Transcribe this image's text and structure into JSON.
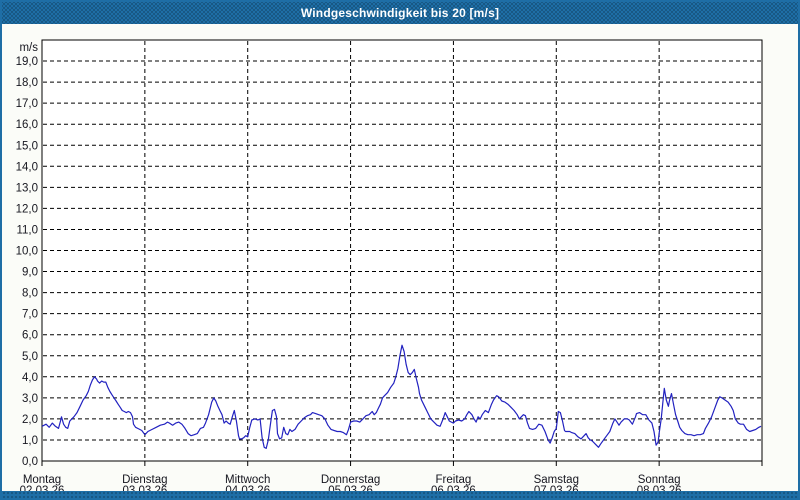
{
  "window": {
    "title": "Windgeschwindigkeit bis 20 [m/s]"
  },
  "colors": {
    "chrome_blue": "#1e6ea6",
    "line": "#2222c0",
    "grid": "#000000",
    "title_text": "#ffffff",
    "label_text": "#16161f",
    "plot_bg": "#ffffff",
    "page_bg": "#fbfcf8"
  },
  "chart_data": {
    "type": "line",
    "title": "Windgeschwindigkeit bis 20 [m/s]",
    "ylabel": "m/s",
    "xlabel": "",
    "legend": "none",
    "grid": "dashed",
    "y_axis": {
      "min": 0,
      "max": 20,
      "tick_step": 1,
      "unit_label": "m/s",
      "tick_decimal": "comma"
    },
    "x_axis": {
      "range_days": [
        0,
        7
      ],
      "ticks": [
        {
          "weekday": "Montag",
          "date": "02.03.26"
        },
        {
          "weekday": "Dienstag",
          "date": "03.03.26"
        },
        {
          "weekday": "Mittwoch",
          "date": "04.03.26"
        },
        {
          "weekday": "Donnerstag",
          "date": "05.03.26"
        },
        {
          "weekday": "Freitag",
          "date": "06.03.26"
        },
        {
          "weekday": "Samstag",
          "date": "07.03.26"
        },
        {
          "weekday": "Sonntag",
          "date": "08.03.26"
        }
      ]
    },
    "series": [
      {
        "name": "Windgeschwindigkeit",
        "color": "#2222c0",
        "points": [
          [
            0.0,
            1.65
          ],
          [
            0.04,
            1.75
          ],
          [
            0.07,
            1.6
          ],
          [
            0.1,
            1.8
          ],
          [
            0.13,
            1.65
          ],
          [
            0.16,
            1.55
          ],
          [
            0.18,
            1.9
          ],
          [
            0.19,
            2.1
          ],
          [
            0.21,
            1.75
          ],
          [
            0.23,
            1.6
          ],
          [
            0.25,
            1.55
          ],
          [
            0.27,
            1.9
          ],
          [
            0.29,
            2.0
          ],
          [
            0.31,
            2.1
          ],
          [
            0.34,
            2.3
          ],
          [
            0.37,
            2.6
          ],
          [
            0.4,
            2.9
          ],
          [
            0.43,
            3.1
          ],
          [
            0.45,
            3.3
          ],
          [
            0.47,
            3.6
          ],
          [
            0.49,
            3.85
          ],
          [
            0.51,
            4.0
          ],
          [
            0.53,
            3.9
          ],
          [
            0.54,
            3.8
          ],
          [
            0.56,
            3.7
          ],
          [
            0.58,
            3.8
          ],
          [
            0.6,
            3.75
          ],
          [
            0.62,
            3.75
          ],
          [
            0.64,
            3.5
          ],
          [
            0.66,
            3.3
          ],
          [
            0.68,
            3.15
          ],
          [
            0.7,
            3.0
          ],
          [
            0.72,
            2.85
          ],
          [
            0.74,
            2.7
          ],
          [
            0.76,
            2.55
          ],
          [
            0.78,
            2.4
          ],
          [
            0.8,
            2.35
          ],
          [
            0.82,
            2.3
          ],
          [
            0.84,
            2.35
          ],
          [
            0.86,
            2.3
          ],
          [
            0.88,
            2.1
          ],
          [
            0.89,
            1.75
          ],
          [
            0.91,
            1.6
          ],
          [
            0.93,
            1.55
          ],
          [
            0.95,
            1.5
          ],
          [
            0.97,
            1.45
          ],
          [
            1.0,
            1.25
          ],
          [
            1.03,
            1.4
          ],
          [
            1.07,
            1.5
          ],
          [
            1.11,
            1.6
          ],
          [
            1.15,
            1.7
          ],
          [
            1.19,
            1.75
          ],
          [
            1.22,
            1.85
          ],
          [
            1.24,
            1.8
          ],
          [
            1.27,
            1.7
          ],
          [
            1.3,
            1.8
          ],
          [
            1.33,
            1.85
          ],
          [
            1.36,
            1.75
          ],
          [
            1.39,
            1.55
          ],
          [
            1.42,
            1.3
          ],
          [
            1.45,
            1.2
          ],
          [
            1.48,
            1.25
          ],
          [
            1.51,
            1.3
          ],
          [
            1.54,
            1.55
          ],
          [
            1.57,
            1.6
          ],
          [
            1.59,
            1.8
          ],
          [
            1.62,
            2.2
          ],
          [
            1.65,
            2.8
          ],
          [
            1.67,
            3.0
          ],
          [
            1.69,
            2.85
          ],
          [
            1.71,
            2.6
          ],
          [
            1.73,
            2.4
          ],
          [
            1.75,
            2.2
          ],
          [
            1.77,
            1.8
          ],
          [
            1.79,
            1.9
          ],
          [
            1.81,
            1.8
          ],
          [
            1.83,
            1.75
          ],
          [
            1.85,
            2.1
          ],
          [
            1.87,
            2.4
          ],
          [
            1.89,
            1.9
          ],
          [
            1.91,
            1.2
          ],
          [
            1.92,
            1.05
          ],
          [
            1.94,
            1.05
          ],
          [
            1.96,
            1.1
          ],
          [
            1.98,
            1.2
          ],
          [
            2.0,
            1.15
          ],
          [
            2.02,
            1.6
          ],
          [
            2.04,
            1.95
          ],
          [
            2.07,
            2.0
          ],
          [
            2.1,
            1.95
          ],
          [
            2.12,
            2.0
          ],
          [
            2.14,
            1.1
          ],
          [
            2.16,
            0.65
          ],
          [
            2.18,
            0.6
          ],
          [
            2.2,
            1.0
          ],
          [
            2.22,
            1.7
          ],
          [
            2.24,
            2.4
          ],
          [
            2.26,
            2.45
          ],
          [
            2.28,
            2.1
          ],
          [
            2.29,
            1.3
          ],
          [
            2.31,
            1.05
          ],
          [
            2.33,
            1.1
          ],
          [
            2.35,
            1.6
          ],
          [
            2.37,
            1.3
          ],
          [
            2.39,
            1.25
          ],
          [
            2.41,
            1.5
          ],
          [
            2.43,
            1.4
          ],
          [
            2.46,
            1.5
          ],
          [
            2.49,
            1.75
          ],
          [
            2.52,
            1.9
          ],
          [
            2.55,
            2.05
          ],
          [
            2.58,
            2.15
          ],
          [
            2.61,
            2.2
          ],
          [
            2.63,
            2.3
          ],
          [
            2.66,
            2.25
          ],
          [
            2.69,
            2.2
          ],
          [
            2.72,
            2.15
          ],
          [
            2.75,
            2.0
          ],
          [
            2.78,
            1.7
          ],
          [
            2.81,
            1.5
          ],
          [
            2.84,
            1.45
          ],
          [
            2.87,
            1.4
          ],
          [
            2.9,
            1.4
          ],
          [
            2.93,
            1.35
          ],
          [
            2.96,
            1.25
          ],
          [
            2.98,
            1.5
          ],
          [
            3.0,
            1.85
          ],
          [
            3.03,
            1.9
          ],
          [
            3.06,
            1.9
          ],
          [
            3.09,
            1.85
          ],
          [
            3.12,
            2.0
          ],
          [
            3.15,
            2.15
          ],
          [
            3.18,
            2.2
          ],
          [
            3.21,
            2.35
          ],
          [
            3.23,
            2.2
          ],
          [
            3.25,
            2.3
          ],
          [
            3.27,
            2.5
          ],
          [
            3.29,
            2.7
          ],
          [
            3.31,
            3.0
          ],
          [
            3.33,
            3.1
          ],
          [
            3.36,
            3.25
          ],
          [
            3.39,
            3.5
          ],
          [
            3.42,
            3.7
          ],
          [
            3.44,
            4.0
          ],
          [
            3.46,
            4.4
          ],
          [
            3.48,
            5.0
          ],
          [
            3.5,
            5.5
          ],
          [
            3.52,
            5.2
          ],
          [
            3.54,
            4.6
          ],
          [
            3.56,
            4.2
          ],
          [
            3.58,
            4.1
          ],
          [
            3.6,
            4.2
          ],
          [
            3.62,
            4.35
          ],
          [
            3.64,
            3.9
          ],
          [
            3.66,
            3.5
          ],
          [
            3.67,
            3.2
          ],
          [
            3.69,
            2.9
          ],
          [
            3.72,
            2.6
          ],
          [
            3.75,
            2.3
          ],
          [
            3.78,
            2.0
          ],
          [
            3.81,
            1.85
          ],
          [
            3.84,
            1.7
          ],
          [
            3.87,
            1.65
          ],
          [
            3.9,
            2.0
          ],
          [
            3.92,
            2.3
          ],
          [
            3.94,
            2.1
          ],
          [
            3.96,
            1.9
          ],
          [
            3.98,
            1.85
          ],
          [
            4.0,
            1.8
          ],
          [
            4.02,
            1.9
          ],
          [
            4.05,
            1.95
          ],
          [
            4.08,
            1.9
          ],
          [
            4.11,
            2.0
          ],
          [
            4.13,
            2.2
          ],
          [
            4.15,
            2.35
          ],
          [
            4.18,
            2.2
          ],
          [
            4.2,
            2.0
          ],
          [
            4.22,
            1.85
          ],
          [
            4.24,
            2.1
          ],
          [
            4.26,
            2.0
          ],
          [
            4.28,
            2.2
          ],
          [
            4.31,
            2.4
          ],
          [
            4.34,
            2.3
          ],
          [
            4.37,
            2.7
          ],
          [
            4.39,
            2.9
          ],
          [
            4.42,
            3.1
          ],
          [
            4.44,
            3.05
          ],
          [
            4.47,
            2.85
          ],
          [
            4.5,
            2.8
          ],
          [
            4.53,
            2.7
          ],
          [
            4.56,
            2.55
          ],
          [
            4.59,
            2.4
          ],
          [
            4.62,
            2.2
          ],
          [
            4.64,
            2.0
          ],
          [
            4.66,
            2.1
          ],
          [
            4.68,
            2.2
          ],
          [
            4.7,
            2.15
          ],
          [
            4.72,
            1.8
          ],
          [
            4.74,
            1.55
          ],
          [
            4.77,
            1.5
          ],
          [
            4.8,
            1.55
          ],
          [
            4.83,
            1.75
          ],
          [
            4.86,
            1.7
          ],
          [
            4.89,
            1.4
          ],
          [
            4.92,
            1.0
          ],
          [
            4.94,
            0.85
          ],
          [
            4.96,
            1.1
          ],
          [
            4.98,
            1.4
          ],
          [
            5.0,
            1.55
          ],
          [
            5.02,
            2.35
          ],
          [
            5.04,
            2.3
          ],
          [
            5.06,
            1.9
          ],
          [
            5.08,
            1.45
          ],
          [
            5.09,
            1.4
          ],
          [
            5.11,
            1.4
          ],
          [
            5.13,
            1.4
          ],
          [
            5.15,
            1.35
          ],
          [
            5.18,
            1.3
          ],
          [
            5.21,
            1.15
          ],
          [
            5.24,
            1.05
          ],
          [
            5.27,
            1.2
          ],
          [
            5.29,
            1.3
          ],
          [
            5.31,
            1.1
          ],
          [
            5.33,
            1.0
          ],
          [
            5.35,
            0.95
          ],
          [
            5.38,
            0.8
          ],
          [
            5.41,
            0.65
          ],
          [
            5.43,
            0.8
          ],
          [
            5.46,
            1.0
          ],
          [
            5.49,
            1.2
          ],
          [
            5.52,
            1.4
          ],
          [
            5.55,
            1.8
          ],
          [
            5.57,
            2.0
          ],
          [
            5.59,
            1.85
          ],
          [
            5.61,
            1.7
          ],
          [
            5.63,
            1.85
          ],
          [
            5.66,
            2.0
          ],
          [
            5.69,
            2.0
          ],
          [
            5.71,
            1.95
          ],
          [
            5.74,
            1.75
          ],
          [
            5.77,
            2.1
          ],
          [
            5.78,
            2.25
          ],
          [
            5.81,
            2.3
          ],
          [
            5.84,
            2.2
          ],
          [
            5.87,
            2.2
          ],
          [
            5.9,
            1.95
          ],
          [
            5.93,
            1.8
          ],
          [
            5.95,
            1.4
          ],
          [
            5.97,
            0.75
          ],
          [
            5.99,
            0.9
          ],
          [
            6.0,
            1.3
          ],
          [
            6.02,
            2.0
          ],
          [
            6.04,
            3.0
          ],
          [
            6.05,
            3.45
          ],
          [
            6.07,
            2.9
          ],
          [
            6.09,
            2.6
          ],
          [
            6.1,
            2.85
          ],
          [
            6.12,
            3.2
          ],
          [
            6.14,
            2.7
          ],
          [
            6.16,
            2.2
          ],
          [
            6.18,
            1.9
          ],
          [
            6.2,
            1.6
          ],
          [
            6.22,
            1.45
          ],
          [
            6.25,
            1.3
          ],
          [
            6.28,
            1.25
          ],
          [
            6.31,
            1.25
          ],
          [
            6.34,
            1.2
          ],
          [
            6.37,
            1.25
          ],
          [
            6.4,
            1.25
          ],
          [
            6.43,
            1.3
          ],
          [
            6.45,
            1.55
          ],
          [
            6.48,
            1.8
          ],
          [
            6.51,
            2.1
          ],
          [
            6.54,
            2.5
          ],
          [
            6.57,
            2.9
          ],
          [
            6.59,
            3.05
          ],
          [
            6.61,
            3.0
          ],
          [
            6.64,
            2.9
          ],
          [
            6.67,
            2.8
          ],
          [
            6.7,
            2.6
          ],
          [
            6.72,
            2.4
          ],
          [
            6.74,
            2.0
          ],
          [
            6.77,
            1.8
          ],
          [
            6.79,
            1.75
          ],
          [
            6.82,
            1.75
          ],
          [
            6.85,
            1.5
          ],
          [
            6.88,
            1.4
          ],
          [
            6.91,
            1.45
          ],
          [
            6.94,
            1.5
          ],
          [
            6.97,
            1.6
          ],
          [
            6.99,
            1.65
          ]
        ]
      }
    ]
  }
}
